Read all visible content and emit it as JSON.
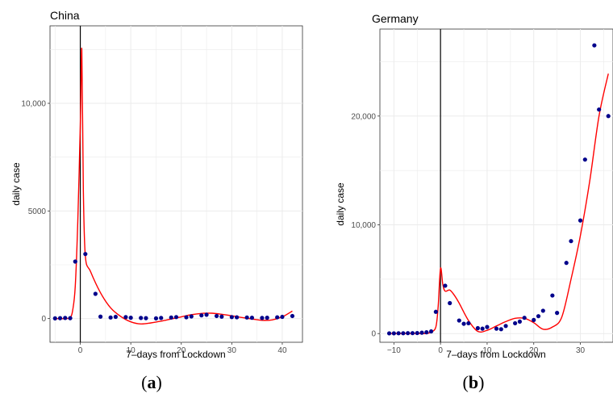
{
  "chart_data": [
    {
      "type": "scatter",
      "title": "China",
      "xlabel": "7–days from Lockdown",
      "ylabel": "daily case",
      "xlim": [
        -6,
        44
      ],
      "ylim": [
        -1100,
        13600
      ],
      "xticks": [
        0,
        10,
        20,
        30,
        40
      ],
      "xtick_labels": [
        "0",
        "10",
        "20",
        "30",
        "40"
      ],
      "yticks": [
        0,
        5000,
        10000
      ],
      "ytick_labels": [
        "0",
        "5000",
        "10,000"
      ],
      "vline_x": 0,
      "grid": true,
      "caption_letter": "a",
      "series": [
        {
          "kind": "points",
          "color": "#00008b",
          "x": [
            -5,
            -4,
            -3,
            -2,
            -1,
            1,
            3,
            4,
            6,
            7,
            9,
            10,
            12,
            13,
            15,
            16,
            18,
            19,
            21,
            22,
            24,
            25,
            27,
            28,
            30,
            31,
            33,
            34,
            36,
            37,
            39,
            40,
            42
          ],
          "y": [
            10,
            20,
            30,
            20,
            2650,
            3000,
            1150,
            90,
            50,
            80,
            70,
            40,
            30,
            20,
            10,
            30,
            50,
            70,
            60,
            100,
            150,
            180,
            120,
            90,
            70,
            60,
            50,
            40,
            30,
            40,
            60,
            80,
            120
          ]
        },
        {
          "kind": "line",
          "color": "#ff0000",
          "x": [
            -5,
            -3,
            -2,
            -1.5,
            -1,
            -0.5,
            0,
            0.3,
            0.6,
            1,
            2,
            4,
            6,
            8,
            10,
            12,
            14,
            16,
            18,
            20,
            22,
            24,
            26,
            28,
            30,
            32,
            34,
            36,
            38,
            40,
            42
          ],
          "y": [
            0,
            0,
            50,
            400,
            1500,
            4500,
            9000,
            12500,
            6000,
            2900,
            2200,
            1200,
            500,
            100,
            -150,
            -250,
            -200,
            -120,
            -20,
            80,
            180,
            240,
            250,
            200,
            130,
            50,
            -20,
            -80,
            -60,
            80,
            350
          ]
        }
      ]
    },
    {
      "type": "scatter",
      "title": "Germany",
      "xlabel": "7–days from Lockdown",
      "ylabel": "daily case",
      "xlim": [
        -13,
        37
      ],
      "ylim": [
        -800,
        28000
      ],
      "xticks": [
        -10,
        0,
        10,
        20,
        30
      ],
      "xtick_labels": [
        "−10",
        "0",
        "10",
        "20",
        "30"
      ],
      "yticks": [
        0,
        10000,
        20000
      ],
      "ytick_labels": [
        "0",
        "10,000",
        "20,000"
      ],
      "vline_x": 0,
      "grid": true,
      "caption_letter": "b",
      "series": [
        {
          "kind": "points",
          "color": "#00008b",
          "x": [
            -11,
            -10,
            -9,
            -8,
            -7,
            -6,
            -5,
            -4,
            -3,
            -2,
            -1,
            1,
            2,
            4,
            5,
            6,
            8,
            9,
            10,
            12,
            13,
            14,
            16,
            17,
            18,
            20,
            21,
            22,
            24,
            25,
            27,
            28,
            30,
            31,
            33,
            34,
            36
          ],
          "y": [
            20,
            20,
            30,
            30,
            40,
            40,
            50,
            80,
            120,
            200,
            2000,
            4400,
            2800,
            1200,
            900,
            950,
            500,
            450,
            600,
            450,
            400,
            700,
            950,
            1100,
            1450,
            1250,
            1600,
            2100,
            3500,
            1900,
            6500,
            8500,
            10400,
            16000,
            26500,
            20600,
            20000
          ]
        },
        {
          "kind": "line",
          "color": "#ff0000",
          "x": [
            -11,
            -5,
            -3,
            -2,
            -1,
            -0.5,
            0,
            0.5,
            1,
            2,
            3,
            4,
            6,
            8,
            10,
            12,
            14,
            16,
            18,
            20,
            22,
            24,
            26,
            28,
            30,
            32,
            34,
            36
          ],
          "y": [
            0,
            0,
            0,
            150,
            600,
            2500,
            6000,
            4500,
            3900,
            4000,
            3500,
            2800,
            1200,
            200,
            300,
            700,
            1100,
            1400,
            1400,
            1000,
            400,
            600,
            1500,
            5000,
            9000,
            14000,
            20000,
            23900
          ]
        }
      ]
    }
  ]
}
